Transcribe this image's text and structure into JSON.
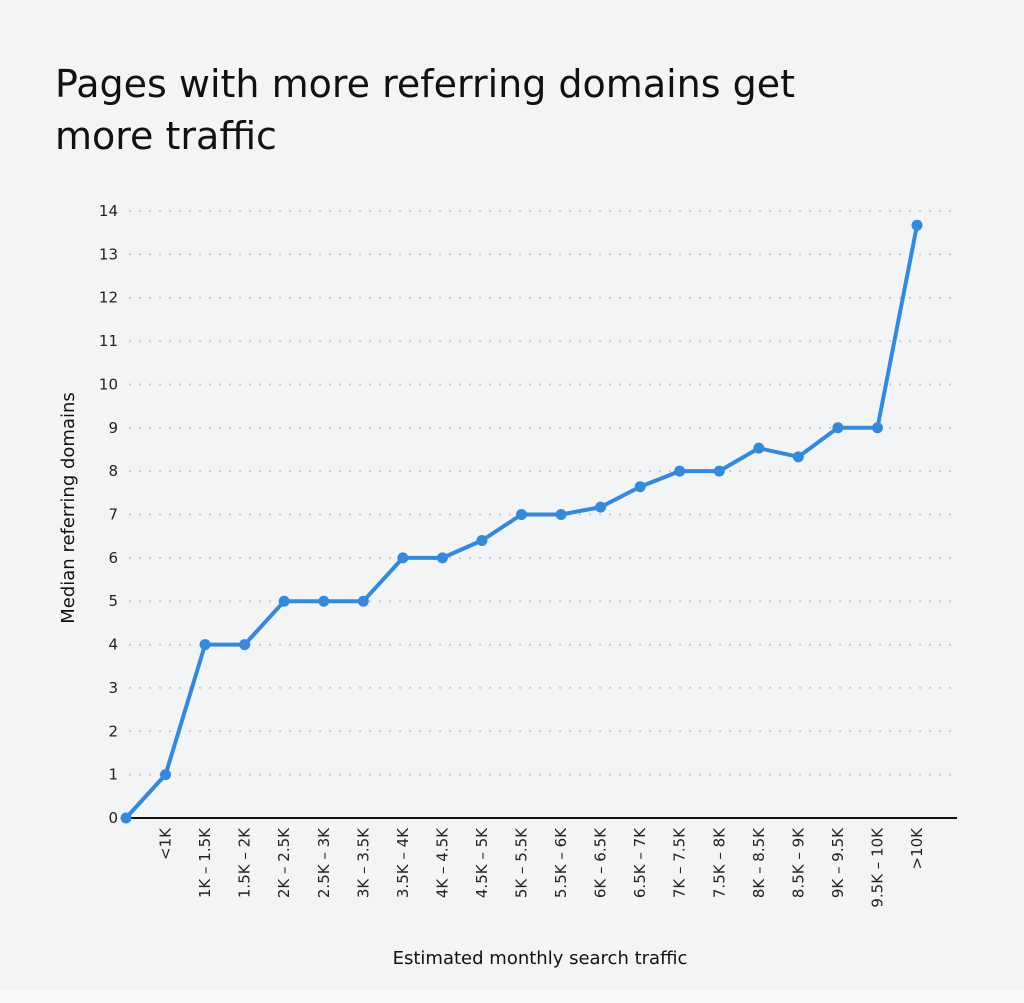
{
  "chart_data": {
    "type": "line",
    "title": "Pages with more referring domains get more traffic",
    "xlabel": "Estimated monthly search traffic",
    "ylabel": "Median referring domains",
    "ylim": [
      0,
      14
    ],
    "yticks": [
      "0",
      "1",
      "2",
      "3",
      "4",
      "5",
      "6",
      "7",
      "8",
      "9",
      "10",
      "11",
      "12",
      "13",
      "14"
    ],
    "grid": true,
    "categories": [
      "",
      "<1K",
      "1K – 1.5K",
      "1.5K – 2K",
      "2K – 2.5K",
      "2.5K – 3K",
      "3K – 3.5K",
      "3.5K – 4K",
      "4K – 4.5K",
      "4.5K – 5K",
      "5K – 5.5K",
      "5.5K – 6K",
      "6K – 6.5K",
      "6.5K – 7K",
      "7K – 7.5K",
      "7.5K – 8K",
      "8K – 8.5K",
      "8.5K – 9K",
      "9K – 9.5K",
      "9.5K – 10K",
      ">10K"
    ],
    "series": [
      {
        "values": [
          0,
          1,
          4,
          4,
          5,
          5,
          5,
          6,
          6,
          6.4,
          7,
          7,
          7.17,
          7.64,
          8,
          8,
          8.53,
          8.33,
          9,
          9,
          13.67
        ],
        "color": "#3589db"
      }
    ]
  }
}
